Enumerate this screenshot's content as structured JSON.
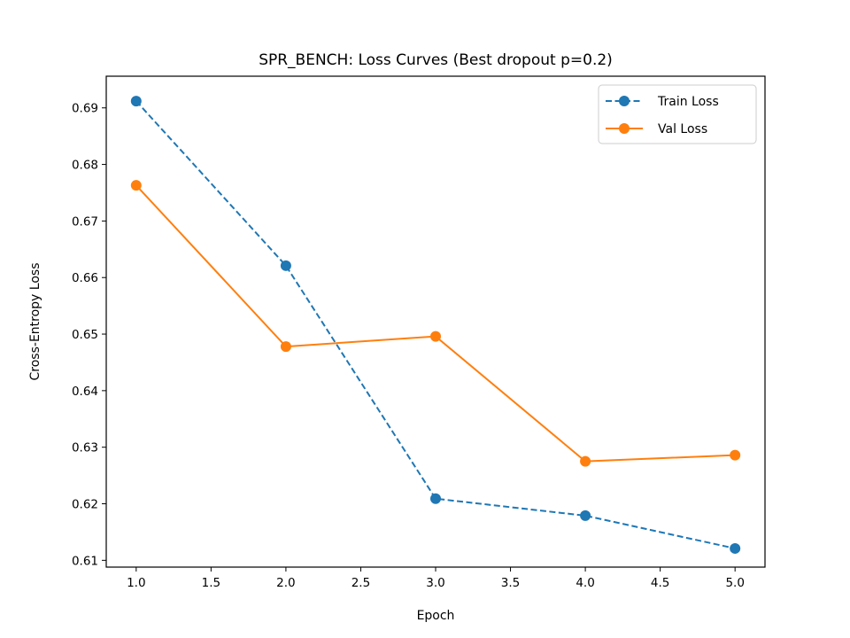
{
  "chart_data": {
    "type": "line",
    "title": "SPR_BENCH: Loss Curves (Best dropout p=0.2)",
    "xlabel": "Epoch",
    "ylabel": "Cross-Entropy Loss",
    "xlim": [
      0.8,
      5.2
    ],
    "ylim": [
      0.6088,
      0.6956
    ],
    "x_ticks": [
      1.0,
      1.5,
      2.0,
      2.5,
      3.0,
      3.5,
      4.0,
      4.5,
      5.0
    ],
    "x_tick_labels": [
      "1.0",
      "1.5",
      "2.0",
      "2.5",
      "3.0",
      "3.5",
      "4.0",
      "4.5",
      "5.0"
    ],
    "y_ticks": [
      0.61,
      0.62,
      0.63,
      0.64,
      0.65,
      0.66,
      0.67,
      0.68,
      0.69
    ],
    "y_tick_labels": [
      "0.61",
      "0.62",
      "0.63",
      "0.64",
      "0.65",
      "0.66",
      "0.67",
      "0.68",
      "0.69"
    ],
    "grid": false,
    "legend_position": "top-right",
    "x": [
      1,
      2,
      3,
      4,
      5
    ],
    "series": [
      {
        "name": "Train Loss",
        "values": [
          0.6912,
          0.6621,
          0.6209,
          0.6179,
          0.6121
        ],
        "color": "#1f77b4",
        "line_style": "dashed",
        "marker": "circle"
      },
      {
        "name": "Val Loss",
        "values": [
          0.6763,
          0.6478,
          0.6496,
          0.6275,
          0.6286
        ],
        "color": "#ff7f0e",
        "line_style": "solid",
        "marker": "circle"
      }
    ]
  }
}
